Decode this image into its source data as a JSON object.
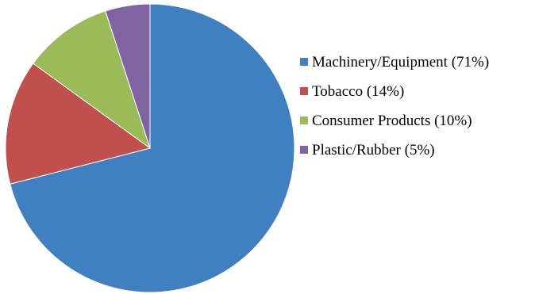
{
  "chart_data": {
    "type": "pie",
    "slices": [
      {
        "label": "Machinery/Equipment (71%)",
        "value": 71,
        "color": "#4180C0"
      },
      {
        "label": "Tobacco (14%)",
        "value": 14,
        "color": "#C0504D"
      },
      {
        "label": "Consumer Products (10%)",
        "value": 10,
        "color": "#9BBB59"
      },
      {
        "label": "Plastic/Rubber (5%)",
        "value": 5,
        "color": "#8064A2"
      }
    ],
    "legend_position": "right",
    "start_angle": "12 o'clock",
    "direction": "clockwise"
  }
}
